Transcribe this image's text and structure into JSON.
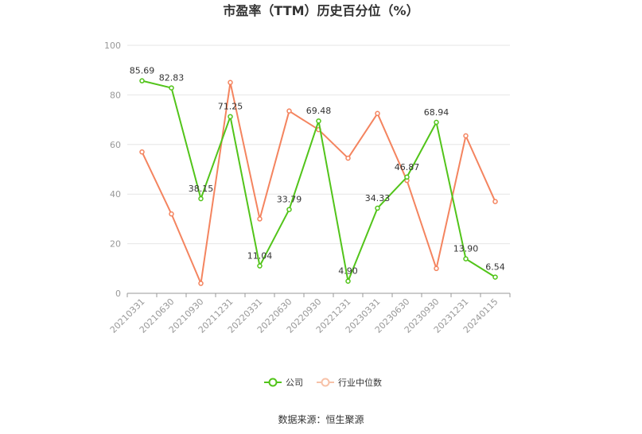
{
  "title": "市盈率（TTM）历史百分位（%）",
  "source": "数据来源：恒生聚源",
  "chart_data": {
    "type": "line",
    "title": "市盈率（TTM）历史百分位（%）",
    "categories": [
      "20210331",
      "20210630",
      "20210930",
      "20211231",
      "20220331",
      "20220630",
      "20220930",
      "20221231",
      "20230331",
      "20230630",
      "20230930",
      "20231231",
      "20240115"
    ],
    "ylim": [
      0,
      100
    ],
    "yticks": [
      0,
      20,
      40,
      60,
      80,
      100
    ],
    "grid": true,
    "legend_position": "bottom",
    "series": [
      {
        "name": "公司",
        "color": "#52c41a",
        "show_labels": true,
        "values": [
          85.69,
          82.83,
          38.15,
          71.25,
          11.04,
          33.79,
          69.48,
          4.9,
          34.33,
          46.87,
          68.94,
          13.9,
          6.54
        ],
        "labels": [
          "85.69",
          "82.83",
          "38.15",
          "71.25",
          "11.04",
          "33.79",
          "69.48",
          "4.90",
          "34.33",
          "46.87",
          "68.94",
          "13.90",
          "6.54"
        ]
      },
      {
        "name": "行业中位数",
        "color": "#f4845f",
        "show_labels": false,
        "values": [
          57.0,
          32.0,
          4.0,
          85.0,
          30.0,
          73.5,
          66.0,
          54.5,
          72.5,
          45.5,
          10.0,
          63.5,
          37.0
        ]
      }
    ]
  }
}
